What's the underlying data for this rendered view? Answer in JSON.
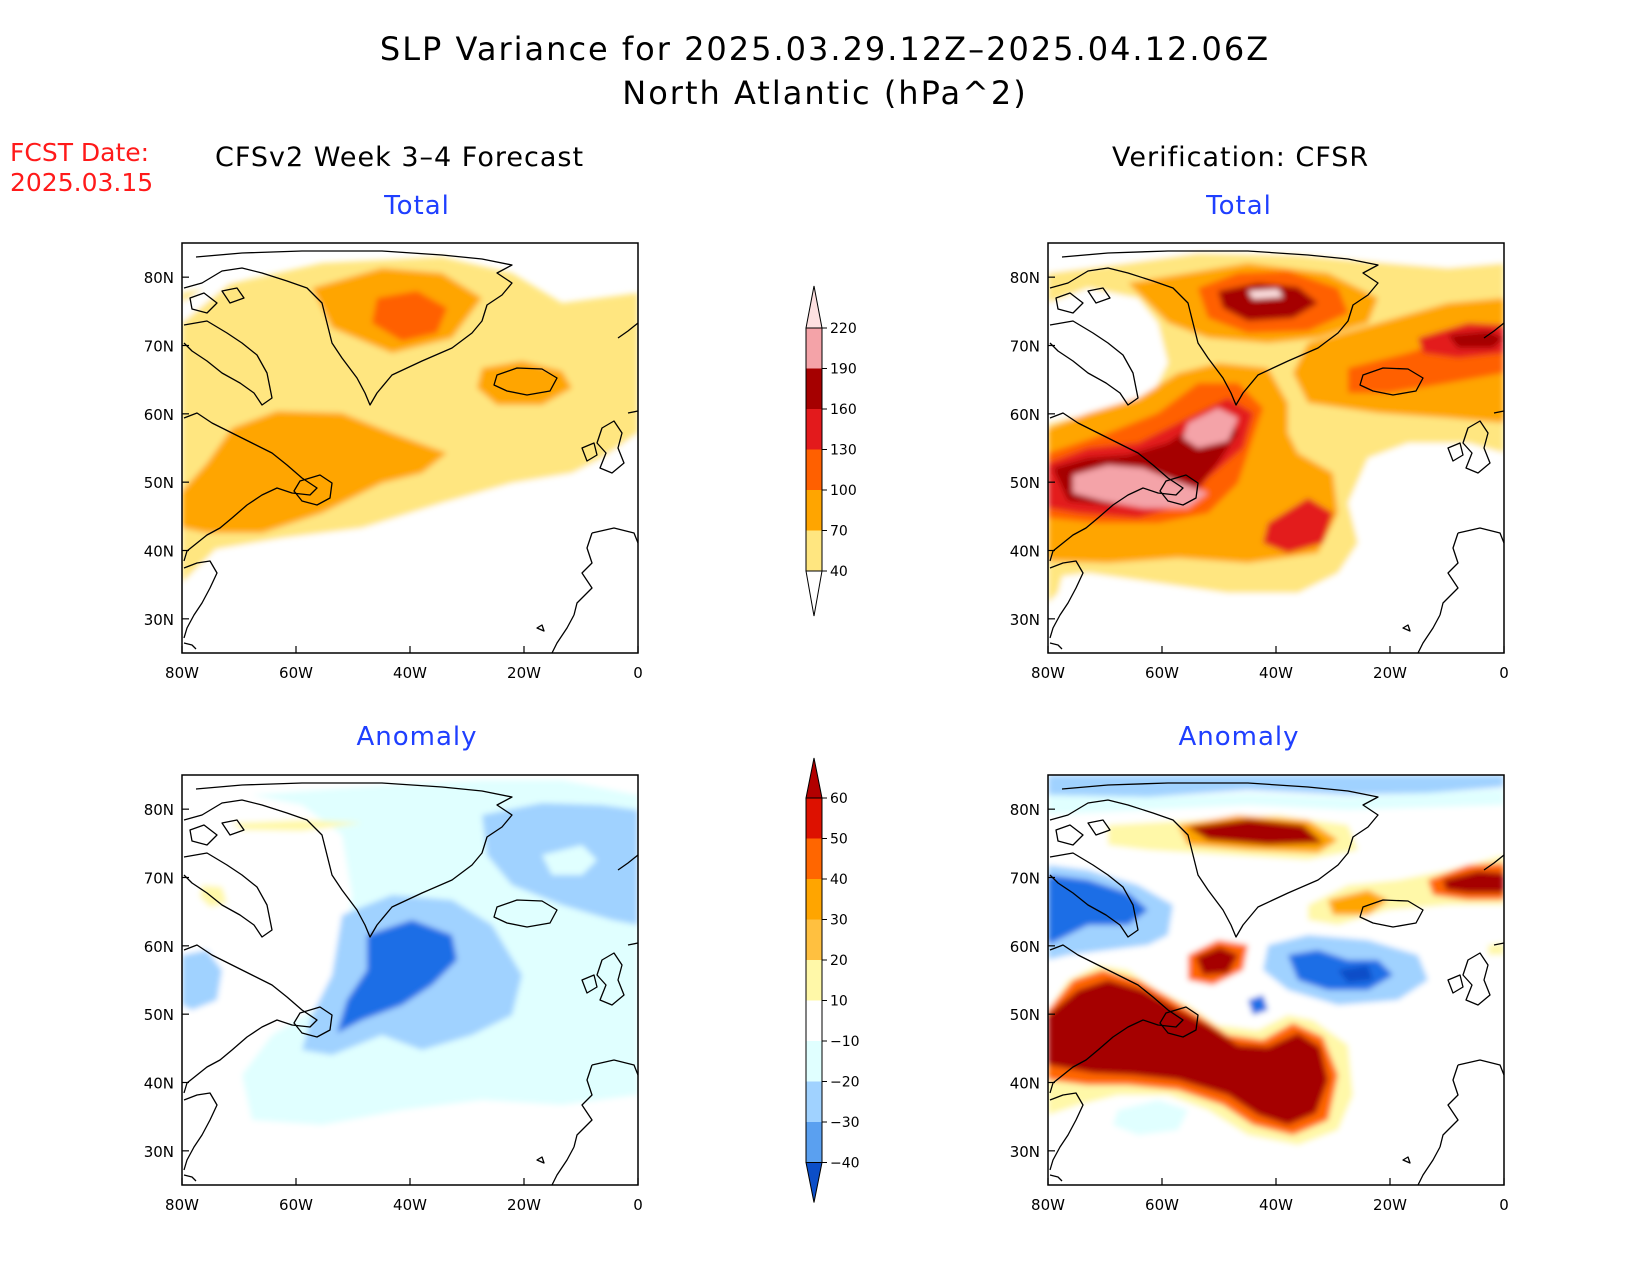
{
  "title_line1": "SLP Variance for 2025.03.29.12Z–2025.04.12.06Z",
  "title_line2": "North Atlantic (hPa^2)",
  "fcst_label": "FCST Date:",
  "fcst_value": "2025.03.15",
  "left_column_title": "CFSv2 Week 3–4 Forecast",
  "right_column_title": "Verification: CFSR",
  "panel_titles": [
    "Total",
    "Total",
    "Anomaly",
    "Anomaly"
  ],
  "axes": {
    "lon_ticks": [
      "80W",
      "60W",
      "40W",
      "20W",
      "0"
    ],
    "lat_ticks": [
      "80N",
      "70N",
      "60N",
      "50N",
      "40N",
      "30N"
    ],
    "lon_range": [
      -80,
      0
    ],
    "lat_range": [
      25,
      85
    ]
  },
  "total_colorbar": {
    "levels": [
      "40",
      "70",
      "100",
      "130",
      "160",
      "190",
      "220"
    ],
    "colors": [
      "#ffe680",
      "#ffa500",
      "#ff6000",
      "#e31a1c",
      "#a50000",
      "#f4a3a8",
      "#fde0e0"
    ]
  },
  "anomaly_colorbar": {
    "levels": [
      "60",
      "50",
      "40",
      "30",
      "20",
      "10",
      "−10",
      "−20",
      "−30",
      "−40"
    ],
    "colors": [
      "#b20000",
      "#dd1100",
      "#ff6600",
      "#ffa500",
      "#ffc040",
      "#fff8a8",
      "#ffffff",
      "#e0ffff",
      "#a0d2ff",
      "#5aa0f0",
      "#1e6ee6",
      "#0b4ec8"
    ]
  },
  "colors": {
    "land_outline": "#000000",
    "frame": "#000000",
    "panel_title": "#1f3fff",
    "fcst_text": "#ff1a1a"
  }
}
